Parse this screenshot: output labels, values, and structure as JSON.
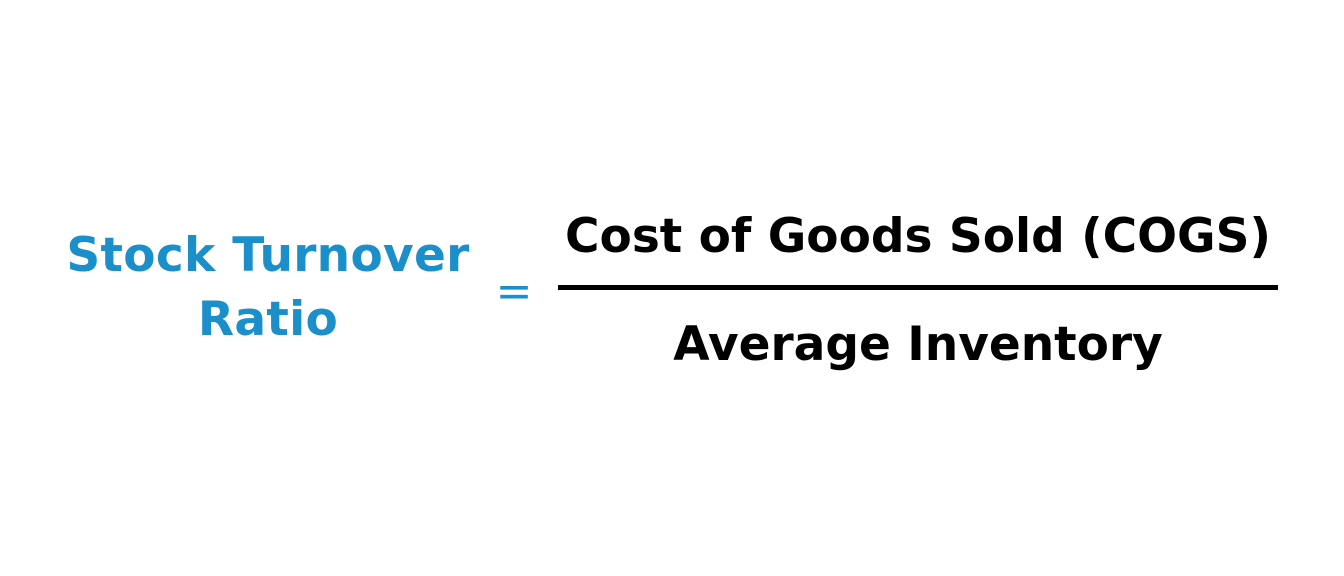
{
  "formula": {
    "lhs": {
      "line1": "Stock Turnover",
      "line2": "Ratio"
    },
    "equals": "=",
    "numerator": "Cost of Goods Sold (COGS)",
    "denominator": "Average Inventory"
  },
  "colors": {
    "accent": "#1b8fc9",
    "text": "#000000",
    "background": "#ffffff"
  }
}
